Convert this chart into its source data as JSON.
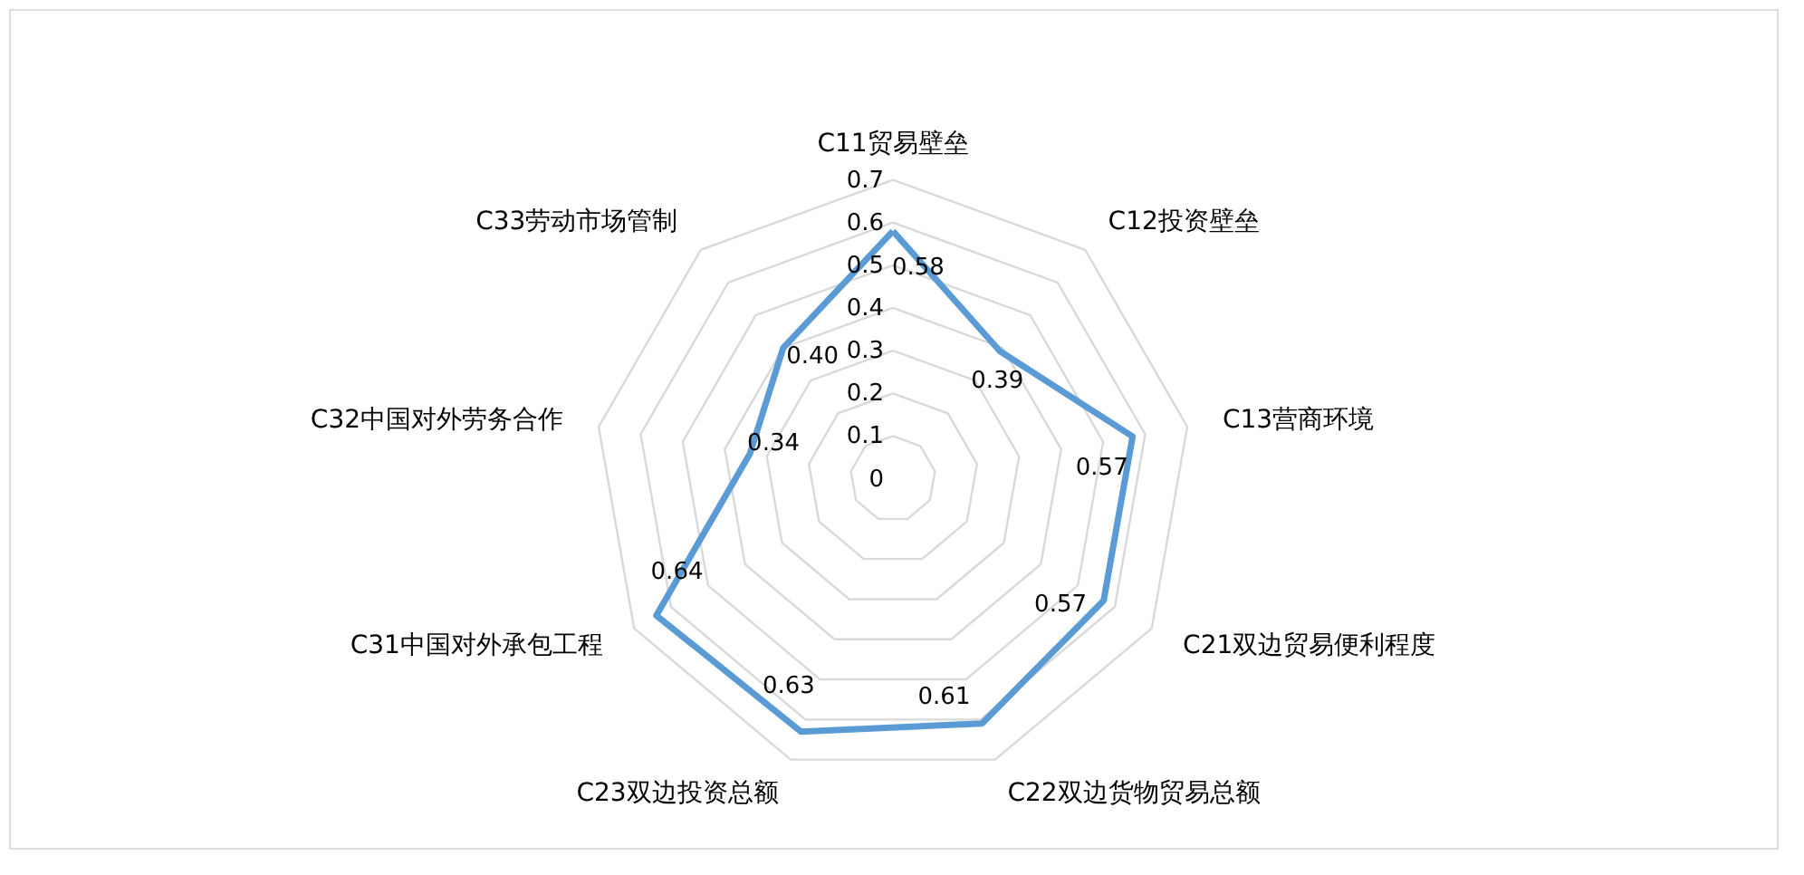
{
  "chart_data": {
    "type": "radar",
    "categories": [
      "C11贸易壁垒",
      "C12投资壁垒",
      "C13营商环境",
      "C21双边贸易便利程度",
      "C22双边货物贸易总额",
      "C23双边投资总额",
      "C31中国对外承包工程",
      "C32中国对外劳务合作",
      "C33劳动市场管制"
    ],
    "series": [
      {
        "color": "#5b9bd5",
        "values": [
          0.58,
          0.39,
          0.57,
          0.57,
          0.61,
          0.63,
          0.64,
          0.34,
          0.4
        ],
        "value_labels": [
          "0.58",
          "0.39",
          "0.57",
          "0.57",
          "0.61",
          "0.63",
          "0.64",
          "0.34",
          "0.40"
        ]
      }
    ],
    "ylim": [
      0,
      0.7
    ],
    "yticks": [
      0,
      0.1,
      0.2,
      0.3,
      0.4,
      0.5,
      0.6,
      0.7
    ],
    "grid": true
  }
}
